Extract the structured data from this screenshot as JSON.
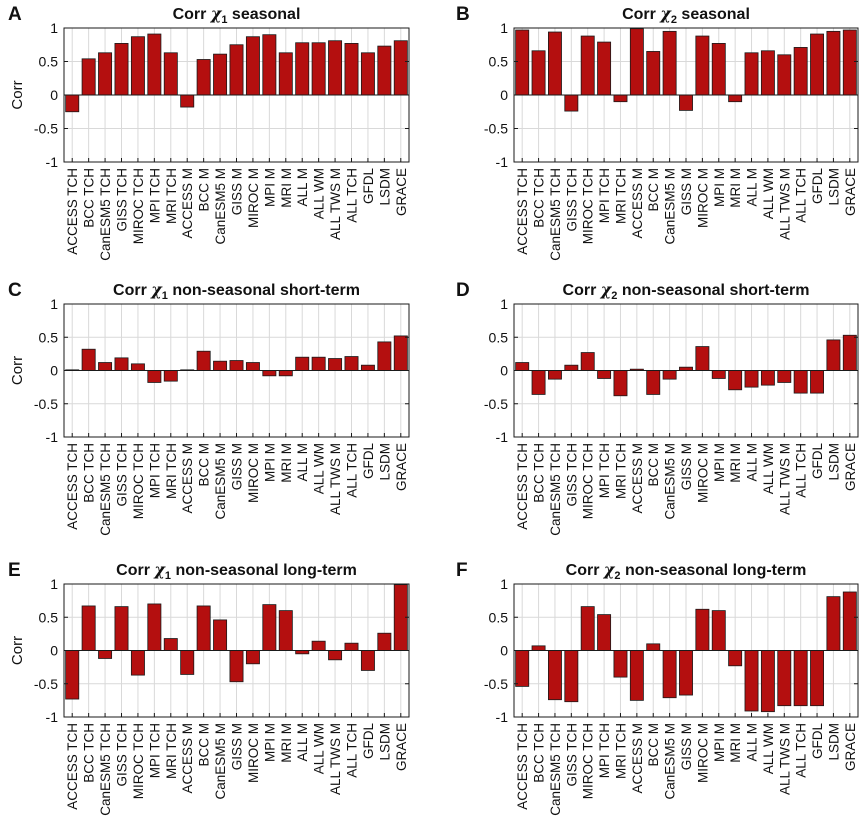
{
  "figure": {
    "colors": {
      "bar_fill": "#b40f0f",
      "bar_stroke": "#1a1a1a",
      "grid": "#d9d9d9",
      "axis": "#1a1a1a"
    }
  },
  "chart_data": [
    {
      "panel_letter": "A",
      "type": "bar",
      "title_prefix": "Corr ",
      "title_symbol": "χ",
      "title_subscript": "1",
      "title_suffix": " seasonal",
      "ylabel": "Corr",
      "ylim": [
        -1,
        1
      ],
      "yticks": [
        -1,
        -0.5,
        0,
        0.5,
        1
      ],
      "ytick_labels": [
        "-1",
        "-0.5",
        "0",
        "0.5",
        "1"
      ],
      "grid": true,
      "categories": [
        "ACCESS TCH",
        "BCC TCH",
        "CanESM5 TCH",
        "GISS TCH",
        "MIROC TCH",
        "MPI TCH",
        "MRI TCH",
        "ACCESS M",
        "BCC M",
        "CanESM5 M",
        "GISS M",
        "MIROC M",
        "MPI M",
        "MRI M",
        "ALL M",
        "ALL WM",
        "ALL TWS M",
        "ALL TCH",
        "GFDL",
        "LSDM",
        "GRACE"
      ],
      "values": [
        -0.25,
        0.54,
        0.63,
        0.77,
        0.87,
        0.91,
        0.63,
        -0.18,
        0.53,
        0.61,
        0.75,
        0.87,
        0.9,
        0.63,
        0.78,
        0.78,
        0.81,
        0.77,
        0.63,
        0.73,
        0.81
      ]
    },
    {
      "panel_letter": "B",
      "type": "bar",
      "title_prefix": "Corr ",
      "title_symbol": "χ",
      "title_subscript": "2",
      "title_suffix": " seasonal",
      "ylabel": "",
      "ylim": [
        -1,
        1
      ],
      "yticks": [
        -1,
        -0.5,
        0,
        0.5,
        1
      ],
      "ytick_labels": [
        "-1",
        "-0.5",
        "0",
        "0.5",
        "1"
      ],
      "grid": true,
      "categories": [
        "ACCESS TCH",
        "BCC TCH",
        "CanESM5 TCH",
        "GISS TCH",
        "MIROC TCH",
        "MPI TCH",
        "MRI TCH",
        "ACCESS M",
        "BCC M",
        "CanESM5 M",
        "GISS M",
        "MIROC M",
        "MPI M",
        "MRI M",
        "ALL M",
        "ALL WM",
        "ALL TWS M",
        "ALL TCH",
        "GFDL",
        "LSDM",
        "GRACE"
      ],
      "values": [
        0.97,
        0.66,
        0.94,
        -0.24,
        0.88,
        0.79,
        -0.1,
        0.99,
        0.65,
        0.95,
        -0.23,
        0.88,
        0.77,
        -0.1,
        0.63,
        0.66,
        0.6,
        0.71,
        0.91,
        0.95,
        0.97
      ]
    },
    {
      "panel_letter": "C",
      "type": "bar",
      "title_prefix": "Corr ",
      "title_symbol": "χ",
      "title_subscript": "1",
      "title_suffix": " non-seasonal short-term",
      "ylabel": "Corr",
      "ylim": [
        -1,
        1
      ],
      "yticks": [
        -1,
        -0.5,
        0,
        0.5,
        1
      ],
      "ytick_labels": [
        "-1",
        "-0.5",
        "0",
        "0.5",
        "1"
      ],
      "grid": true,
      "categories": [
        "ACCESS TCH",
        "BCC TCH",
        "CanESM5 TCH",
        "GISS TCH",
        "MIROC TCH",
        "MPI TCH",
        "MRI TCH",
        "ACCESS M",
        "BCC M",
        "CanESM5 M",
        "GISS M",
        "MIROC M",
        "MPI M",
        "MRI M",
        "ALL M",
        "ALL WM",
        "ALL TWS M",
        "ALL TCH",
        "GFDL",
        "LSDM",
        "GRACE"
      ],
      "values": [
        0.01,
        0.32,
        0.12,
        0.19,
        0.1,
        -0.18,
        -0.16,
        0.01,
        0.29,
        0.14,
        0.15,
        0.12,
        -0.08,
        -0.08,
        0.2,
        0.2,
        0.18,
        0.21,
        0.08,
        0.43,
        0.52
      ]
    },
    {
      "panel_letter": "D",
      "type": "bar",
      "title_prefix": "Corr ",
      "title_symbol": "χ",
      "title_subscript": "2",
      "title_suffix": " non-seasonal short-term",
      "ylabel": "",
      "ylim": [
        -1,
        1
      ],
      "yticks": [
        -1,
        -0.5,
        0,
        0.5,
        1
      ],
      "ytick_labels": [
        "-1",
        "-0.5",
        "0",
        "0.5",
        "1"
      ],
      "grid": true,
      "categories": [
        "ACCESS TCH",
        "BCC TCH",
        "CanESM5 TCH",
        "GISS TCH",
        "MIROC TCH",
        "MPI TCH",
        "MRI TCH",
        "ACCESS M",
        "BCC M",
        "CanESM5 M",
        "GISS M",
        "MIROC M",
        "MPI M",
        "MRI M",
        "ALL M",
        "ALL WM",
        "ALL TWS M",
        "ALL TCH",
        "GFDL",
        "LSDM",
        "GRACE"
      ],
      "values": [
        0.12,
        -0.36,
        -0.13,
        0.08,
        0.27,
        -0.12,
        -0.38,
        0.02,
        -0.36,
        -0.13,
        0.05,
        0.36,
        -0.12,
        -0.29,
        -0.25,
        -0.22,
        -0.18,
        -0.34,
        -0.34,
        0.46,
        0.53
      ]
    },
    {
      "panel_letter": "E",
      "type": "bar",
      "title_prefix": "Corr ",
      "title_symbol": "χ",
      "title_subscript": "1",
      "title_suffix": " non-seasonal long-term",
      "ylabel": "Corr",
      "ylim": [
        -1,
        1
      ],
      "yticks": [
        -1,
        -0.5,
        0,
        0.5,
        1
      ],
      "ytick_labels": [
        "-1",
        "-0.5",
        "0",
        "0.5",
        "1"
      ],
      "grid": true,
      "categories": [
        "ACCESS TCH",
        "BCC TCH",
        "CanESM5 TCH",
        "GISS TCH",
        "MIROC TCH",
        "MPI TCH",
        "MRI TCH",
        "ACCESS M",
        "BCC M",
        "CanESM5 M",
        "GISS M",
        "MIROC M",
        "MPI M",
        "MRI M",
        "ALL M",
        "ALL WM",
        "ALL TWS M",
        "ALL TCH",
        "GFDL",
        "LSDM",
        "GRACE"
      ],
      "values": [
        -0.73,
        0.67,
        -0.12,
        0.66,
        -0.37,
        0.7,
        0.18,
        -0.36,
        0.67,
        0.46,
        -0.47,
        -0.2,
        0.69,
        0.6,
        -0.05,
        0.14,
        -0.14,
        0.11,
        -0.3,
        0.26,
        0.99
      ]
    },
    {
      "panel_letter": "F",
      "type": "bar",
      "title_prefix": "Corr ",
      "title_symbol": "χ",
      "title_subscript": "2",
      "title_suffix": " non-seasonal long-term",
      "ylabel": "",
      "ylim": [
        -1,
        1
      ],
      "yticks": [
        -1,
        -0.5,
        0,
        0.5,
        1
      ],
      "ytick_labels": [
        "-1",
        "-0.5",
        "0",
        "0.5",
        "1"
      ],
      "grid": true,
      "categories": [
        "ACCESS TCH",
        "BCC TCH",
        "CanESM5 TCH",
        "GISS TCH",
        "MIROC TCH",
        "MPI TCH",
        "MRI TCH",
        "ACCESS M",
        "BCC M",
        "CanESM5 M",
        "GISS M",
        "MIROC M",
        "MPI M",
        "MRI M",
        "ALL M",
        "ALL WM",
        "ALL TWS M",
        "ALL TCH",
        "GFDL",
        "LSDM",
        "GRACE"
      ],
      "values": [
        -0.54,
        0.07,
        -0.74,
        -0.77,
        0.66,
        0.54,
        -0.4,
        -0.75,
        0.1,
        -0.71,
        -0.67,
        0.62,
        0.6,
        -0.23,
        -0.91,
        -0.92,
        -0.83,
        -0.83,
        -0.83,
        0.81,
        0.88
      ]
    }
  ]
}
